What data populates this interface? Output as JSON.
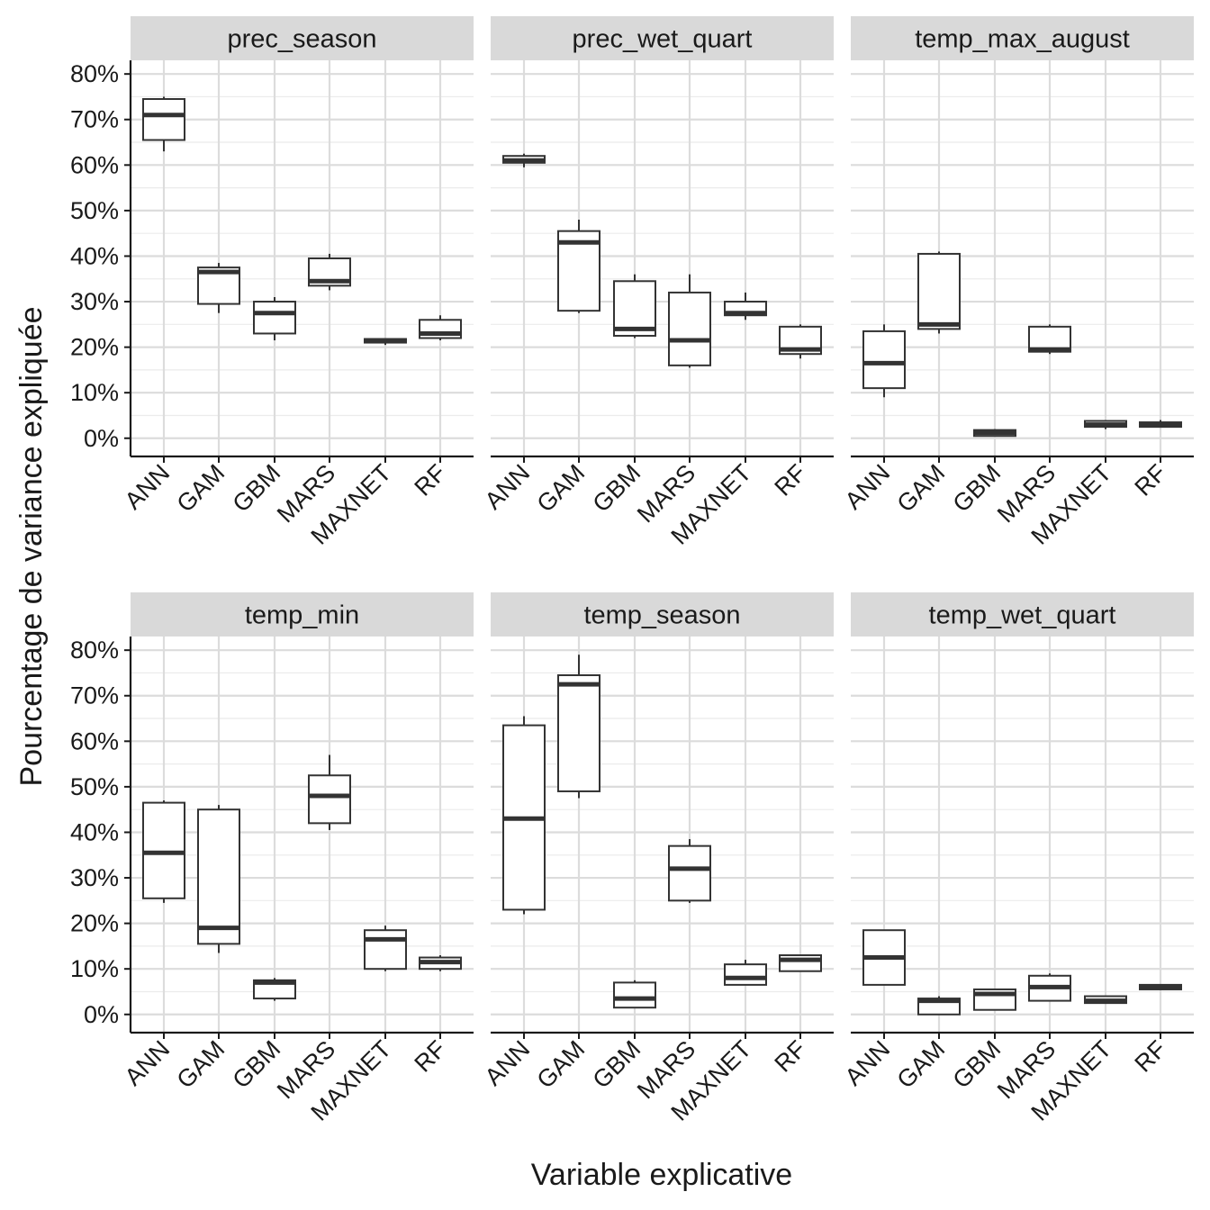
{
  "chart_data": {
    "type": "boxplot",
    "layout": "facet grid 2 rows x 3 columns",
    "xlabel": "Variable explicative",
    "ylabel": "Pourcentage de variance expliquée",
    "categories": [
      "ANN",
      "GAM",
      "GBM",
      "MARS",
      "MAXNET",
      "RF"
    ],
    "y_ticks": [
      0,
      10,
      20,
      30,
      40,
      50,
      60,
      70,
      80
    ],
    "y_tick_labels": [
      "0%",
      "10%",
      "20%",
      "30%",
      "40%",
      "50%",
      "60%",
      "70%",
      "80%"
    ],
    "ylim": [
      -4,
      83
    ],
    "box_fields": [
      "ymin",
      "q1",
      "median",
      "q3",
      "ymax"
    ],
    "panels": [
      {
        "title": "prec_season",
        "boxes": [
          [
            63,
            65.5,
            71,
            74.5,
            75
          ],
          [
            27.5,
            29.5,
            36.5,
            37.5,
            38.5
          ],
          [
            21.5,
            23,
            27.5,
            30,
            31
          ],
          [
            32.5,
            33.5,
            34.5,
            39.5,
            40.5
          ],
          [
            20.5,
            21,
            21.5,
            21.8,
            22
          ],
          [
            21.5,
            22,
            23,
            26,
            27
          ]
        ]
      },
      {
        "title": "prec_wet_quart",
        "boxes": [
          [
            59.5,
            60.5,
            61,
            62,
            62.5
          ],
          [
            27.5,
            28,
            43,
            45.5,
            48
          ],
          [
            22,
            22.5,
            24,
            34.5,
            36
          ],
          [
            15.5,
            16,
            21.5,
            32,
            36
          ],
          [
            26,
            27,
            27.5,
            30,
            32
          ],
          [
            17.5,
            18.5,
            19.5,
            24.5,
            25
          ]
        ]
      },
      {
        "title": "temp_max_august",
        "boxes": [
          [
            9,
            11,
            16.5,
            23.5,
            25
          ],
          [
            23,
            24,
            25,
            40.5,
            41
          ],
          [
            0.5,
            0.5,
            1.2,
            1.8,
            2
          ],
          [
            18.5,
            19,
            19.5,
            24.5,
            25
          ],
          [
            2,
            2.5,
            3,
            3.8,
            4
          ],
          [
            2.5,
            2.5,
            3,
            3.5,
            4
          ]
        ]
      },
      {
        "title": "temp_min",
        "boxes": [
          [
            24.5,
            25.5,
            35.5,
            46.5,
            47
          ],
          [
            13.5,
            15.5,
            19,
            45,
            46
          ],
          [
            3,
            3.5,
            7,
            7.5,
            8
          ],
          [
            40.5,
            42,
            48,
            52.5,
            57
          ],
          [
            9.5,
            10,
            16.5,
            18.5,
            19.5
          ],
          [
            9.5,
            10,
            11.5,
            12.5,
            13
          ]
        ]
      },
      {
        "title": "temp_season",
        "boxes": [
          [
            22,
            23,
            43,
            63.5,
            65.5
          ],
          [
            47.5,
            49,
            72.5,
            74.5,
            79
          ],
          [
            1.5,
            1.5,
            3.5,
            7,
            7.5
          ],
          [
            24.5,
            25,
            32,
            37,
            38.5
          ],
          [
            6.5,
            6.5,
            8,
            11,
            12
          ],
          [
            9.5,
            9.5,
            12,
            13,
            13
          ]
        ]
      },
      {
        "title": "temp_wet_quart",
        "boxes": [
          [
            6.5,
            6.5,
            12.5,
            18.5,
            18.5
          ],
          [
            0,
            0,
            3,
            3.5,
            4
          ],
          [
            1,
            1,
            4.5,
            5.5,
            5.5
          ],
          [
            3,
            3,
            6,
            8.5,
            9
          ],
          [
            2.5,
            2.5,
            3,
            4,
            4
          ],
          [
            5.5,
            5.5,
            6,
            6.5,
            6.5
          ]
        ]
      }
    ]
  }
}
